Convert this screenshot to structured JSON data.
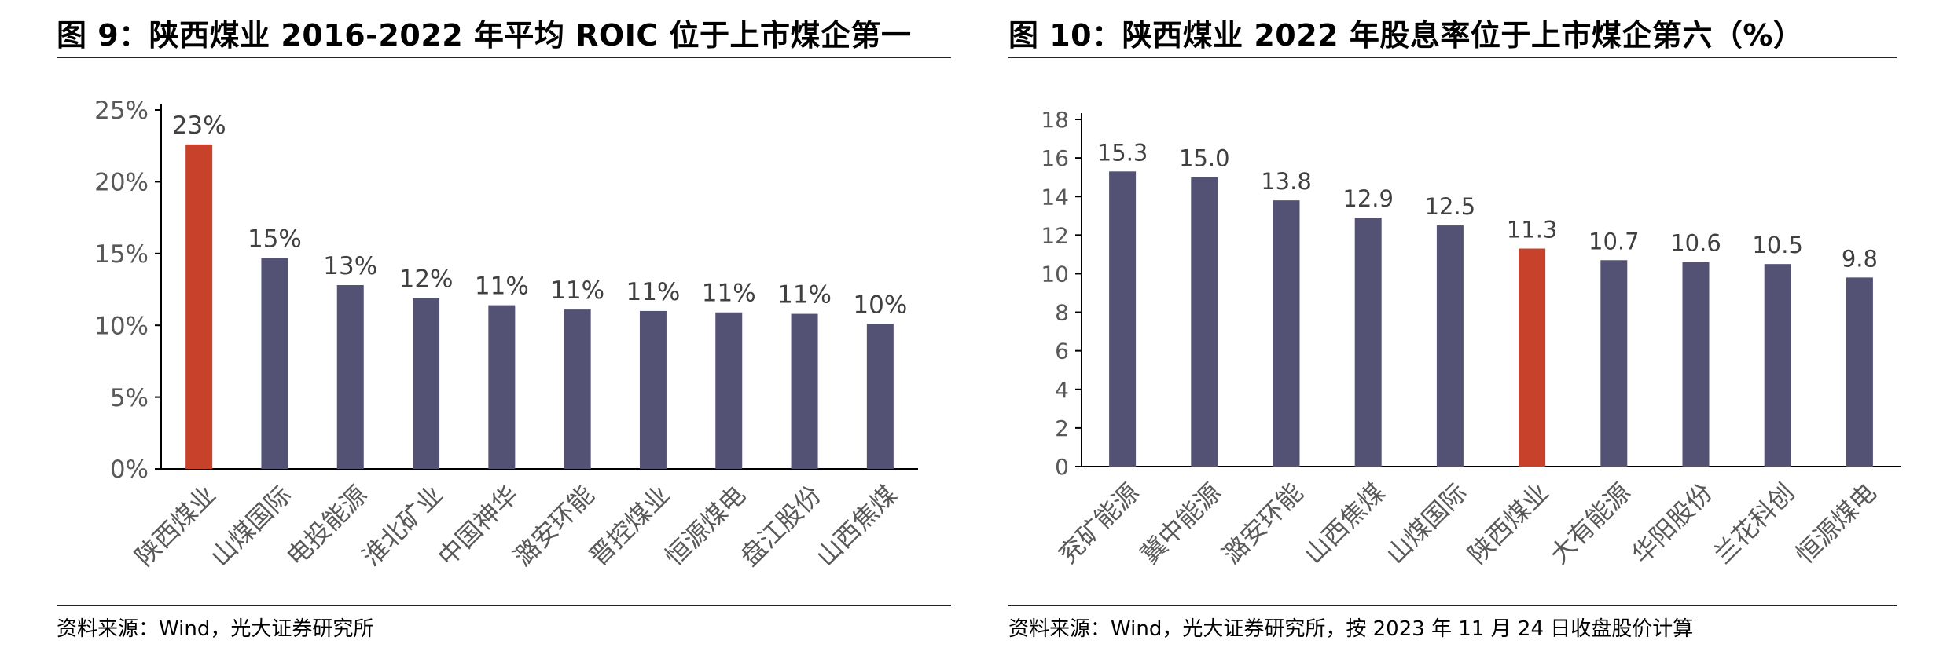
{
  "left": {
    "title": "图 9：陕西煤业 2016-2022 年平均 ROIC 位于上市煤企第一",
    "source": "资料来源：Wind，光大证券研究所"
  },
  "right": {
    "title": "图 10：陕西煤业 2022 年股息率位于上市煤企第六（%）",
    "source": "资料来源：Wind，光大证券研究所，按 2023 年 11 月 24 日收盘股价计算"
  },
  "colors": {
    "bar": "#535275",
    "highlight": "#C8412A"
  },
  "chart_data": [
    {
      "type": "bar",
      "categories": [
        "陕西煤业",
        "山煤国际",
        "电投能源",
        "淮北矿业",
        "中国神华",
        "潞安环能",
        "晋控煤业",
        "恒源煤电",
        "盘江股份",
        "山西焦煤"
      ],
      "values": [
        22.6,
        14.7,
        12.8,
        11.9,
        11.4,
        11.1,
        11.0,
        10.9,
        10.8,
        10.1
      ],
      "data_labels": [
        "23%",
        "15%",
        "13%",
        "12%",
        "11%",
        "11%",
        "11%",
        "11%",
        "11%",
        "10%"
      ],
      "highlight_index": 0,
      "ylim": [
        0,
        25
      ],
      "yticks": [
        "0%",
        "5%",
        "10%",
        "15%",
        "20%",
        "25%"
      ],
      "xlabel": "",
      "ylabel": "",
      "grid": false
    },
    {
      "type": "bar",
      "categories": [
        "兖矿能源",
        "冀中能源",
        "潞安环能",
        "山西焦煤",
        "山煤国际",
        "陕西煤业",
        "大有能源",
        "华阳股份",
        "兰花科创",
        "恒源煤电"
      ],
      "values": [
        15.3,
        15.0,
        13.8,
        12.9,
        12.5,
        11.3,
        10.7,
        10.6,
        10.5,
        9.8
      ],
      "data_labels": [
        "15.3",
        "15.0",
        "13.8",
        "12.9",
        "12.5",
        "11.3",
        "10.7",
        "10.6",
        "10.5",
        "9.8"
      ],
      "highlight_index": 5,
      "ylim": [
        0,
        18
      ],
      "yticks": [
        "0",
        "2",
        "4",
        "6",
        "8",
        "10",
        "12",
        "14",
        "16",
        "18"
      ],
      "xlabel": "",
      "ylabel": "",
      "grid": false
    }
  ]
}
